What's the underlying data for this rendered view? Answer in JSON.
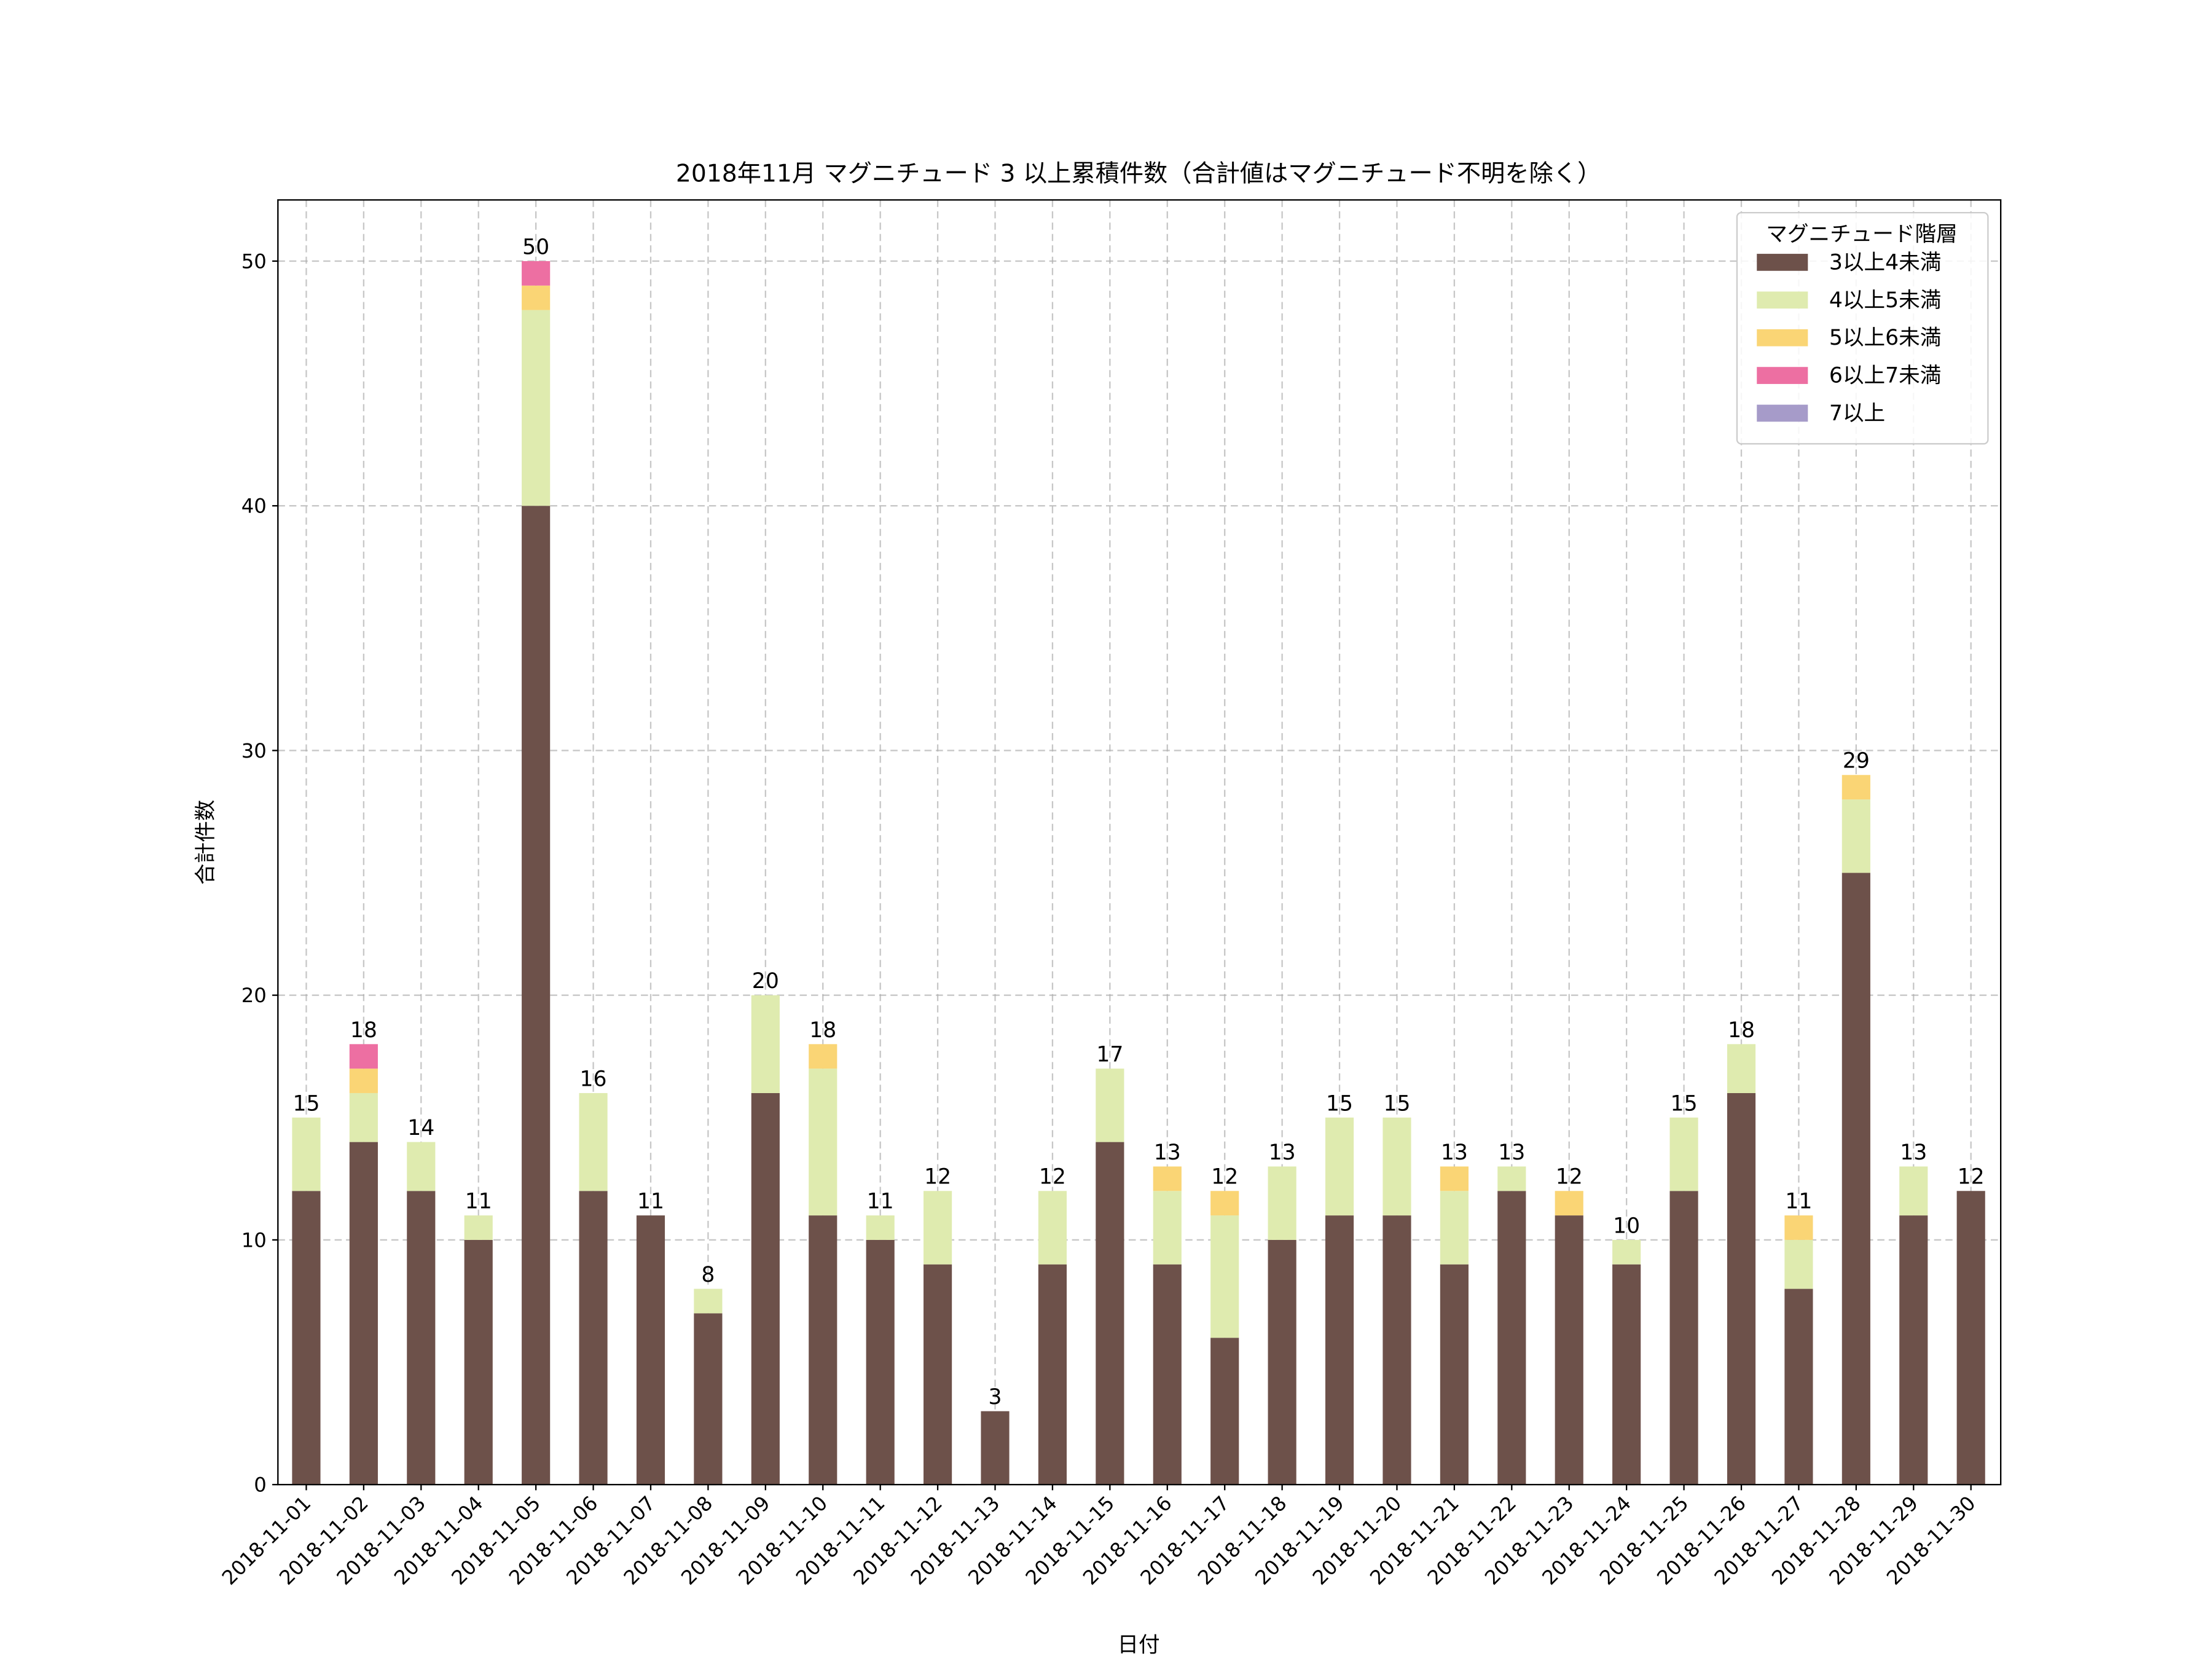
{
  "chart_data": {
    "type": "bar",
    "stacked": true,
    "title": "2018年11月 マグニチュード 3 以上累積件数（合計値はマグニチュード不明を除く）",
    "xlabel": "日付",
    "ylabel": "合計件数",
    "ylim": [
      0,
      52.5
    ],
    "yticks": [
      0,
      10,
      20,
      30,
      40,
      50
    ],
    "grid": true,
    "legend": {
      "title": "マグニチュード階層",
      "placement": "top-right"
    },
    "categories": [
      "2018-11-01",
      "2018-11-02",
      "2018-11-03",
      "2018-11-04",
      "2018-11-05",
      "2018-11-06",
      "2018-11-07",
      "2018-11-08",
      "2018-11-09",
      "2018-11-10",
      "2018-11-11",
      "2018-11-12",
      "2018-11-13",
      "2018-11-14",
      "2018-11-15",
      "2018-11-16",
      "2018-11-17",
      "2018-11-18",
      "2018-11-19",
      "2018-11-20",
      "2018-11-21",
      "2018-11-22",
      "2018-11-23",
      "2018-11-24",
      "2018-11-25",
      "2018-11-26",
      "2018-11-27",
      "2018-11-28",
      "2018-11-29",
      "2018-11-30"
    ],
    "series": [
      {
        "name": "3以上4未満",
        "color": "#6d514a",
        "values": [
          12,
          14,
          12,
          10,
          40,
          12,
          11,
          7,
          16,
          11,
          10,
          9,
          3,
          9,
          14,
          9,
          6,
          10,
          11,
          11,
          9,
          12,
          11,
          9,
          12,
          16,
          8,
          25,
          11,
          12
        ]
      },
      {
        "name": "4以上5未満",
        "color": "#dfebaf",
        "values": [
          3,
          2,
          2,
          1,
          8,
          4,
          0,
          1,
          4,
          6,
          1,
          3,
          0,
          3,
          3,
          3,
          5,
          3,
          4,
          4,
          3,
          1,
          0,
          1,
          3,
          2,
          2,
          3,
          2,
          0
        ]
      },
      {
        "name": "5以上6未満",
        "color": "#fad575",
        "values": [
          0,
          1,
          0,
          0,
          1,
          0,
          0,
          0,
          0,
          1,
          0,
          0,
          0,
          0,
          0,
          1,
          1,
          0,
          0,
          0,
          1,
          0,
          1,
          0,
          0,
          0,
          1,
          1,
          0,
          0
        ]
      },
      {
        "name": "6以上7未満",
        "color": "#ed6fa2",
        "values": [
          0,
          1,
          0,
          0,
          1,
          0,
          0,
          0,
          0,
          0,
          0,
          0,
          0,
          0,
          0,
          0,
          0,
          0,
          0,
          0,
          0,
          0,
          0,
          0,
          0,
          0,
          0,
          0,
          0,
          0
        ]
      },
      {
        "name": "7以上",
        "color": "#a69bc9",
        "values": [
          0,
          0,
          0,
          0,
          0,
          0,
          0,
          0,
          0,
          0,
          0,
          0,
          0,
          0,
          0,
          0,
          0,
          0,
          0,
          0,
          0,
          0,
          0,
          0,
          0,
          0,
          0,
          0,
          0,
          0
        ]
      }
    ],
    "totals": [
      15,
      18,
      14,
      11,
      50,
      16,
      11,
      8,
      20,
      18,
      11,
      12,
      3,
      12,
      17,
      13,
      12,
      13,
      15,
      15,
      13,
      13,
      12,
      10,
      15,
      18,
      11,
      29,
      13,
      12
    ]
  }
}
